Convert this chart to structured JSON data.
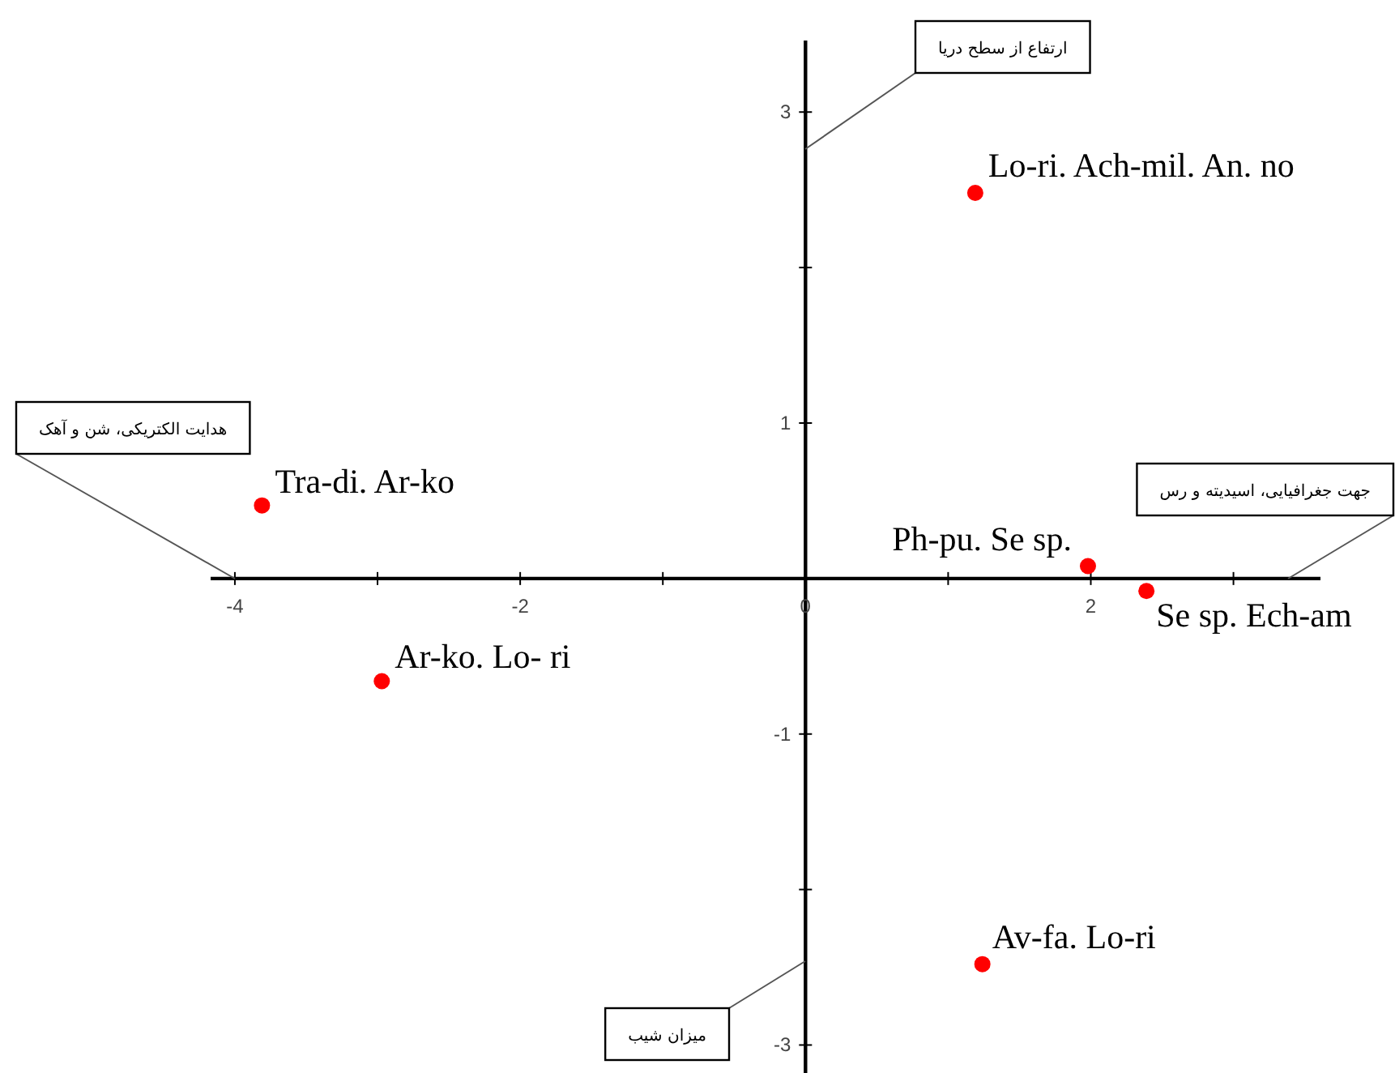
{
  "chart_data": {
    "type": "scatter",
    "marker": "circle",
    "xlim": [
      -4.17,
      3.61
    ],
    "ylim": [
      -3.18,
      3.46
    ],
    "xticks": [
      -4,
      {
        "value": -3,
        "label": null
      },
      -2,
      {
        "value": -1,
        "label": null
      },
      0,
      {
        "value": 1,
        "label": null
      },
      2,
      {
        "value": 3,
        "label": null
      }
    ],
    "yticks": [
      -3,
      {
        "value": -2,
        "label": null
      },
      -1,
      1,
      {
        "value": 2,
        "label": null
      },
      3
    ],
    "series": [
      {
        "name": "Tra-di. Ar-ko",
        "color": "#ff0000",
        "x": [
          -3.81
        ],
        "values": [
          0.47
        ]
      },
      {
        "name": "Ar-ko. Lo- ri",
        "color": "#ff0000",
        "x": [
          -2.97
        ],
        "values": [
          -0.66
        ]
      },
      {
        "name": "Lo-ri. Ach-mil. An. no",
        "color": "#ff0000",
        "x": [
          1.19
        ],
        "values": [
          2.48
        ]
      },
      {
        "name": "Ph-pu. Se sp.",
        "color": "#ff0000",
        "x": [
          1.98
        ],
        "values": [
          0.08
        ]
      },
      {
        "name": "Se sp. Ech-am",
        "color": "#ff0000",
        "x": [
          2.39
        ],
        "values": [
          -0.08
        ]
      },
      {
        "name": "Av-fa. Lo-ri",
        "color": "#ff0000",
        "x": [
          1.24
        ],
        "values": [
          -2.48
        ]
      }
    ],
    "annotations": [
      "ارتفاع از سطح دریا",
      "هدایت الکتریکی، شن و آهک",
      "جهت جغرافیایی، اسیدیته و رس",
      "میزان شیب"
    ]
  }
}
